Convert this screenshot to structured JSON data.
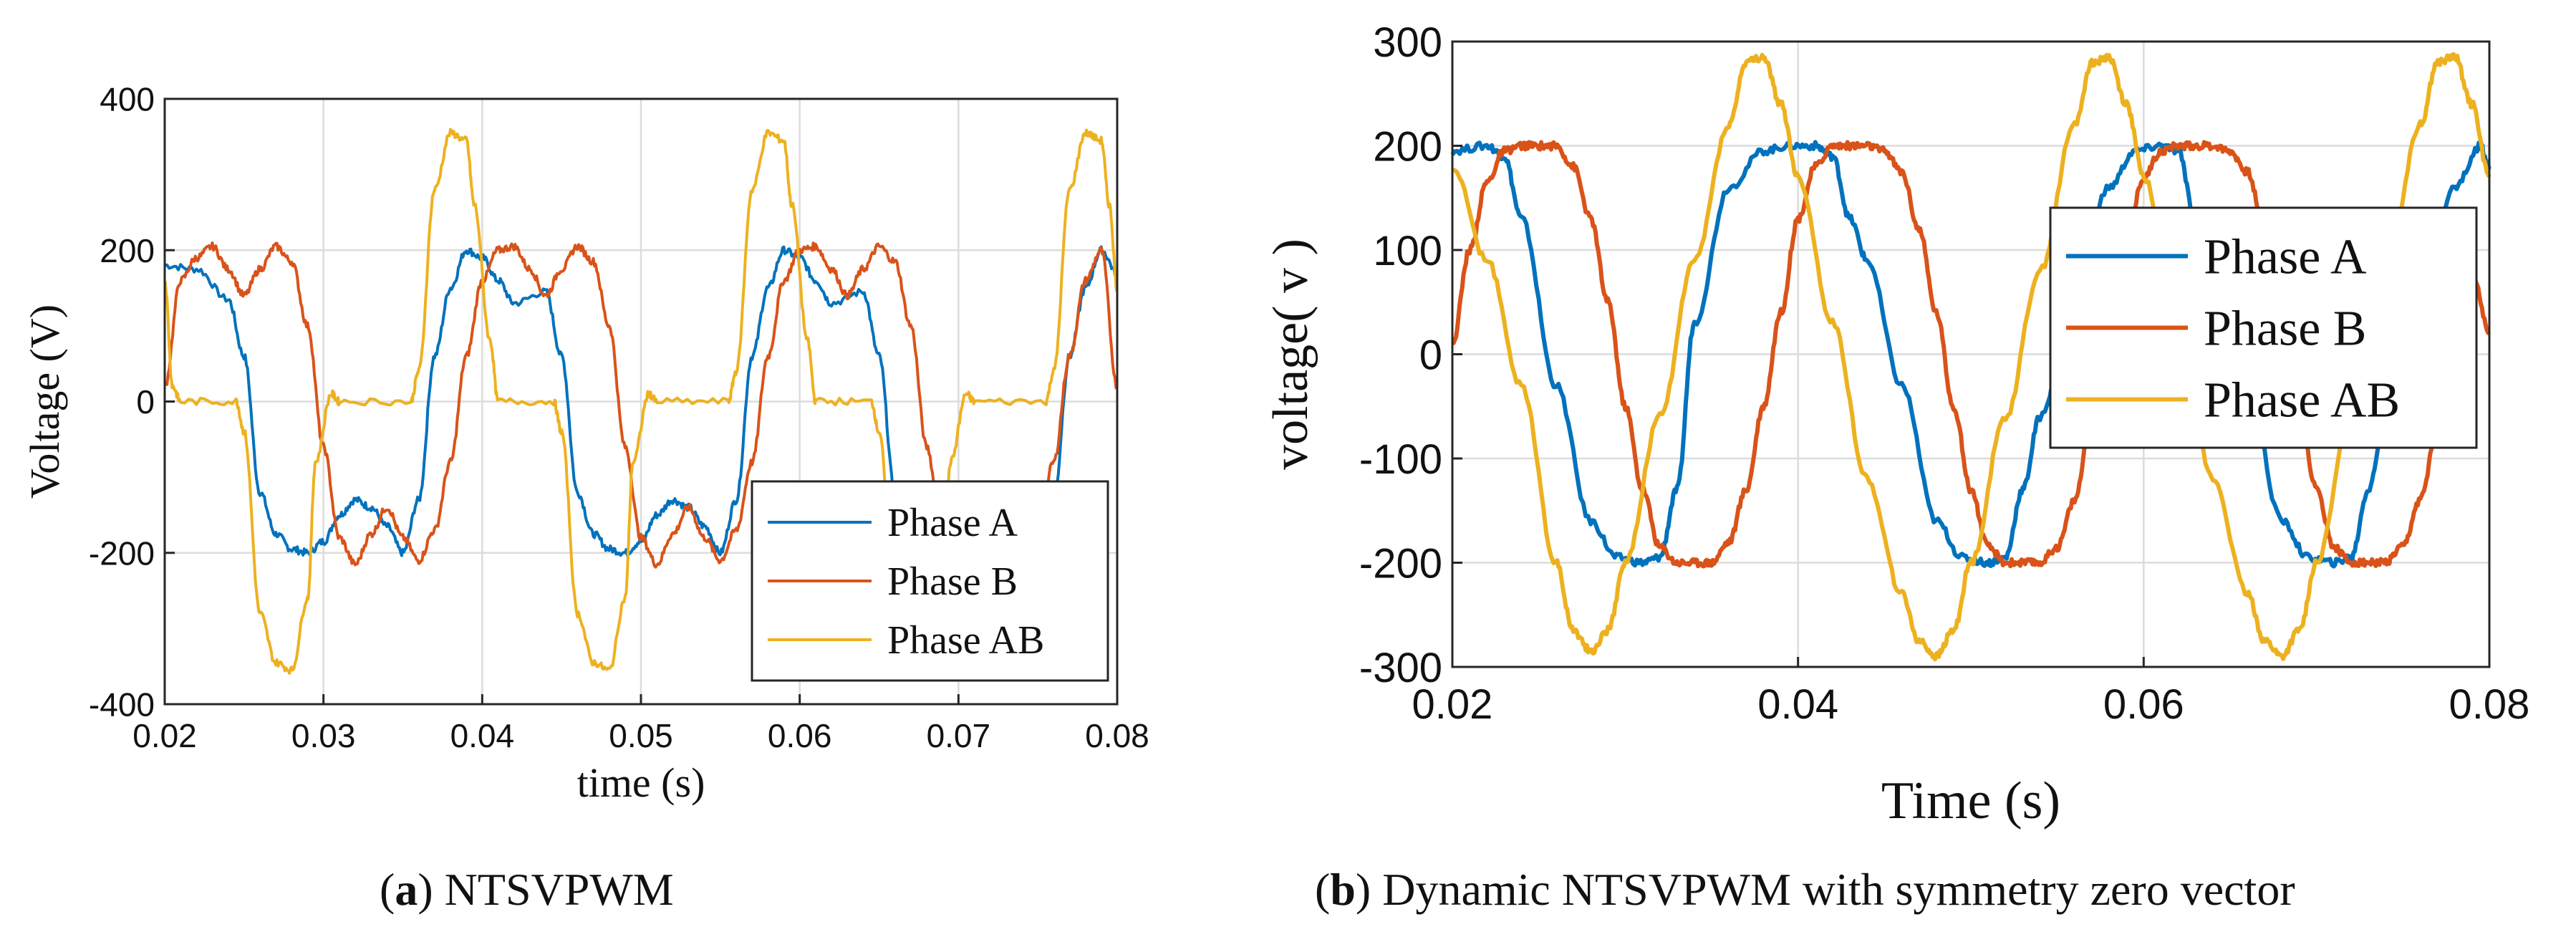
{
  "chart_data": [
    {
      "type": "line",
      "panel": "a",
      "caption": {
        "label": "a",
        "text": "NTSVPWM"
      },
      "xlabel": "time (s)",
      "ylabel": "Voltage (V)",
      "xlim": [
        0.02,
        0.08
      ],
      "ylim": [
        -400,
        400
      ],
      "xticks": [
        0.02,
        0.03,
        0.04,
        0.05,
        0.06,
        0.07,
        0.08
      ],
      "xtick_labels": [
        "0.02",
        "0.03",
        "0.04",
        "0.05",
        "0.06",
        "0.07",
        "0.08"
      ],
      "yticks": [
        -400,
        -200,
        0,
        200,
        400
      ],
      "ytick_labels": [
        "-400",
        "-200",
        "0",
        "200",
        "400"
      ],
      "grid": true,
      "legend_position": "bottom-right",
      "series": [
        {
          "name": "Phase A",
          "color": "#0072BD",
          "x": [
            0.02,
            0.022,
            0.024,
            0.025,
            0.026,
            0.027,
            0.028,
            0.029,
            0.03,
            0.031,
            0.032,
            0.033,
            0.034,
            0.035,
            0.036,
            0.037,
            0.038,
            0.039,
            0.04,
            0.041,
            0.042,
            0.044,
            0.045,
            0.046,
            0.047,
            0.048,
            0.049,
            0.05,
            0.051,
            0.052,
            0.053,
            0.054,
            0.055,
            0.056,
            0.057,
            0.058,
            0.059,
            0.06,
            0.061,
            0.062,
            0.064,
            0.065,
            0.066,
            0.067,
            0.068,
            0.069,
            0.07,
            0.071,
            0.072,
            0.073,
            0.074,
            0.075,
            0.076,
            0.077,
            0.078,
            0.079,
            0.08
          ],
          "y": [
            180,
            175,
            135,
            60,
            -120,
            -175,
            -195,
            -200,
            -185,
            -150,
            -130,
            -140,
            -165,
            -200,
            -130,
            60,
            150,
            200,
            190,
            160,
            130,
            145,
            60,
            -120,
            -175,
            -195,
            -200,
            -185,
            -150,
            -130,
            -140,
            -165,
            -200,
            -130,
            60,
            150,
            200,
            190,
            160,
            130,
            145,
            60,
            -120,
            -175,
            -195,
            -200,
            -185,
            -150,
            -130,
            -140,
            -165,
            -200,
            -130,
            60,
            150,
            200,
            170
          ]
        },
        {
          "name": "Phase B",
          "color": "#D95319",
          "x": [
            0.02,
            0.021,
            0.022,
            0.023,
            0.024,
            0.025,
            0.026,
            0.027,
            0.028,
            0.029,
            0.03,
            0.031,
            0.032,
            0.033,
            0.034,
            0.035,
            0.036,
            0.037,
            0.038,
            0.039,
            0.04,
            0.041,
            0.042,
            0.043,
            0.044,
            0.045,
            0.046,
            0.047,
            0.048,
            0.049,
            0.05,
            0.051,
            0.052,
            0.053,
            0.054,
            0.055,
            0.056,
            0.057,
            0.058,
            0.059,
            0.06,
            0.061,
            0.062,
            0.063,
            0.064,
            0.065,
            0.066,
            0.067,
            0.068,
            0.069,
            0.07,
            0.071,
            0.072,
            0.073,
            0.074,
            0.075,
            0.076,
            0.077,
            0.078,
            0.079,
            0.08
          ],
          "y": [
            20,
            160,
            190,
            205,
            175,
            140,
            175,
            205,
            185,
            100,
            -60,
            -180,
            -215,
            -175,
            -140,
            -180,
            -210,
            -170,
            -80,
            60,
            160,
            200,
            205,
            175,
            140,
            175,
            205,
            185,
            100,
            -60,
            -180,
            -215,
            -175,
            -140,
            -180,
            -210,
            -170,
            -80,
            60,
            160,
            200,
            205,
            175,
            140,
            175,
            205,
            185,
            100,
            -60,
            -180,
            -215,
            -175,
            -140,
            -180,
            -210,
            -170,
            -80,
            60,
            160,
            200,
            20
          ]
        },
        {
          "name": "Phase AB",
          "color": "#EDB120",
          "x": [
            0.02,
            0.0205,
            0.021,
            0.0245,
            0.025,
            0.026,
            0.027,
            0.028,
            0.029,
            0.0295,
            0.0305,
            0.031,
            0.0355,
            0.036,
            0.037,
            0.038,
            0.039,
            0.0395,
            0.0405,
            0.041,
            0.0445,
            0.045,
            0.046,
            0.047,
            0.048,
            0.049,
            0.0495,
            0.0505,
            0.051,
            0.0555,
            0.056,
            0.057,
            0.058,
            0.059,
            0.0595,
            0.0605,
            0.061,
            0.0645,
            0.065,
            0.066,
            0.067,
            0.068,
            0.069,
            0.0695,
            0.0705,
            0.071,
            0.0755,
            0.076,
            0.077,
            0.078,
            0.079,
            0.0795,
            0.08
          ],
          "y": [
            160,
            20,
            0,
            0,
            -40,
            -280,
            -345,
            -355,
            -260,
            -80,
            10,
            0,
            0,
            40,
            280,
            355,
            345,
            260,
            80,
            0,
            0,
            -40,
            -280,
            -345,
            -355,
            -260,
            -80,
            10,
            0,
            0,
            40,
            280,
            355,
            345,
            260,
            80,
            0,
            0,
            -40,
            -280,
            -345,
            -355,
            -260,
            -80,
            10,
            0,
            0,
            40,
            280,
            355,
            345,
            260,
            150
          ]
        }
      ]
    },
    {
      "type": "line",
      "panel": "b",
      "caption": {
        "label": "b",
        "text": "Dynamic NTSVPWM with symmetry zero vector"
      },
      "xlabel": "Time (s)",
      "ylabel": "voltage( v )",
      "xlim": [
        0.02,
        0.08
      ],
      "ylim": [
        -300,
        300
      ],
      "xticks": [
        0.02,
        0.04,
        0.06,
        0.08
      ],
      "xtick_labels": [
        "0.02",
        "0.04",
        "0.06",
        "0.08"
      ],
      "yticks": [
        -300,
        -200,
        -100,
        0,
        100,
        200,
        300
      ],
      "ytick_labels": [
        "-300",
        "-200",
        "-100",
        "0",
        "100",
        "200",
        "300"
      ],
      "grid": true,
      "legend_position": "top-right",
      "series": [
        {
          "name": "Phase A",
          "color": "#0072BD",
          "x": [
            0.02,
            0.022,
            0.023,
            0.024,
            0.026,
            0.028,
            0.0295,
            0.031,
            0.032,
            0.033,
            0.034,
            0.036,
            0.038,
            0.0395,
            0.041,
            0.042,
            0.043,
            0.044,
            0.046,
            0.048,
            0.0495,
            0.051,
            0.052,
            0.053,
            0.054,
            0.056,
            0.058,
            0.0595,
            0.061,
            0.062,
            0.063,
            0.064,
            0.066,
            0.068,
            0.0695,
            0.071,
            0.072,
            0.073,
            0.074,
            0.076,
            0.078,
            0.0795,
            0.08
          ],
          "y": [
            195,
            200,
            190,
            130,
            -30,
            -160,
            -195,
            -200,
            -195,
            -130,
            30,
            160,
            195,
            200,
            200,
            190,
            130,
            90,
            -30,
            -160,
            -195,
            -200,
            -195,
            -130,
            -60,
            60,
            160,
            195,
            200,
            195,
            130,
            90,
            -30,
            -160,
            -195,
            -200,
            -195,
            -130,
            -60,
            60,
            160,
            200,
            180
          ]
        },
        {
          "name": "Phase B",
          "color": "#D95319",
          "x": [
            0.02,
            0.021,
            0.022,
            0.023,
            0.024,
            0.025,
            0.026,
            0.027,
            0.028,
            0.029,
            0.03,
            0.031,
            0.032,
            0.033,
            0.034,
            0.035,
            0.036,
            0.037,
            0.038,
            0.039,
            0.04,
            0.041,
            0.042,
            0.043,
            0.044,
            0.045,
            0.046,
            0.047,
            0.048,
            0.049,
            0.05,
            0.051,
            0.052,
            0.053,
            0.054,
            0.055,
            0.056,
            0.057,
            0.058,
            0.059,
            0.06,
            0.061,
            0.062,
            0.063,
            0.064,
            0.065,
            0.066,
            0.067,
            0.068,
            0.069,
            0.07,
            0.071,
            0.072,
            0.073,
            0.074,
            0.075,
            0.076,
            0.077,
            0.078,
            0.079,
            0.08
          ],
          "y": [
            10,
            100,
            165,
            195,
            200,
            200,
            200,
            180,
            130,
            50,
            -50,
            -130,
            -185,
            -200,
            -200,
            -200,
            -180,
            -130,
            -50,
            40,
            130,
            180,
            200,
            200,
            200,
            195,
            175,
            120,
            40,
            -50,
            -130,
            -185,
            -200,
            -200,
            -200,
            -185,
            -140,
            -60,
            30,
            110,
            170,
            195,
            200,
            200,
            200,
            195,
            175,
            120,
            40,
            -50,
            -130,
            -185,
            -200,
            -200,
            -200,
            -185,
            -140,
            -70,
            0,
            80,
            20
          ]
        },
        {
          "name": "Phase AB",
          "color": "#EDB120",
          "x": [
            0.02,
            0.022,
            0.024,
            0.026,
            0.027,
            0.028,
            0.029,
            0.03,
            0.032,
            0.034,
            0.036,
            0.037,
            0.038,
            0.039,
            0.04,
            0.042,
            0.044,
            0.046,
            0.047,
            0.048,
            0.049,
            0.05,
            0.052,
            0.054,
            0.056,
            0.057,
            0.058,
            0.059,
            0.06,
            0.062,
            0.064,
            0.066,
            0.067,
            0.068,
            0.069,
            0.07,
            0.072,
            0.074,
            0.076,
            0.077,
            0.078,
            0.079,
            0.08
          ],
          "y": [
            180,
            90,
            -30,
            -200,
            -265,
            -285,
            -265,
            -200,
            -60,
            90,
            220,
            280,
            285,
            240,
            170,
            30,
            -120,
            -230,
            -275,
            -290,
            -265,
            -200,
            -60,
            80,
            220,
            280,
            285,
            240,
            170,
            30,
            -120,
            -230,
            -275,
            -290,
            -265,
            -200,
            -60,
            80,
            220,
            280,
            285,
            240,
            170
          ]
        }
      ]
    }
  ]
}
